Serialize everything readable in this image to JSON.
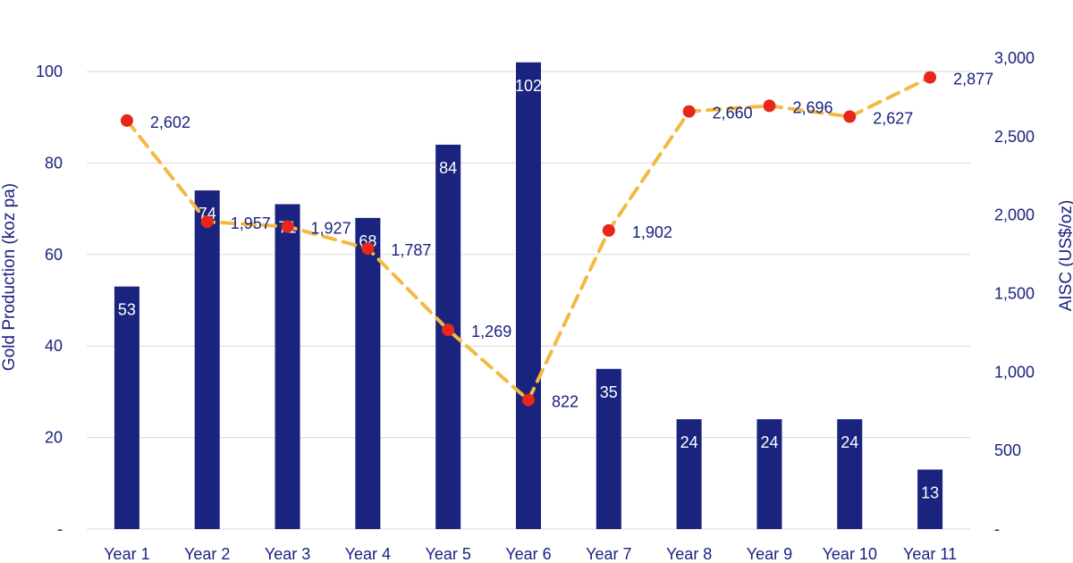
{
  "chart_data": {
    "type": "bar",
    "categories": [
      "Year 1",
      "Year 2",
      "Year 3",
      "Year 4",
      "Year 5",
      "Year 6",
      "Year 7",
      "Year 8",
      "Year 9",
      "Year 10",
      "Year 11"
    ],
    "series": [
      {
        "name": "",
        "type": "bar",
        "axis": "left",
        "color": "#1a237e",
        "values": [
          53,
          74,
          71,
          68,
          84,
          102,
          35,
          24,
          24,
          24,
          13
        ],
        "labels": [
          "53",
          "74",
          "71",
          "68",
          "84",
          "102",
          "35",
          "24",
          "24",
          "24",
          "13"
        ]
      },
      {
        "name": "",
        "type": "line",
        "axis": "right",
        "line_color": "#f4b942",
        "marker_color": "#e8261c",
        "line_style": "dashed",
        "values": [
          2602,
          1957,
          1927,
          1787,
          1269,
          822,
          1902,
          2660,
          2696,
          2627,
          2877
        ],
        "labels": [
          "2,602",
          "1,957",
          "1,927",
          "1,787",
          "1,269",
          "822",
          "1,902",
          "2,660",
          "2,696",
          "2,627",
          "2,877"
        ]
      }
    ],
    "ylabel": "Gold Production (koz pa)",
    "ylabel_right": "AISC (US$/oz)",
    "ylim": [
      0,
      100
    ],
    "ylim_right": [
      0,
      3000
    ],
    "yticks": [
      0,
      20,
      40,
      60,
      80,
      100
    ],
    "ytick_labels": [
      "-",
      "20",
      "40",
      "60",
      "80",
      "100"
    ],
    "yticks_right": [
      0,
      500,
      1000,
      1500,
      2000,
      2500,
      3000
    ],
    "ytick_labels_right": [
      "-",
      "500",
      "1,000",
      "1,500",
      "2,000",
      "2,500",
      "3,000"
    ],
    "grid": true
  }
}
